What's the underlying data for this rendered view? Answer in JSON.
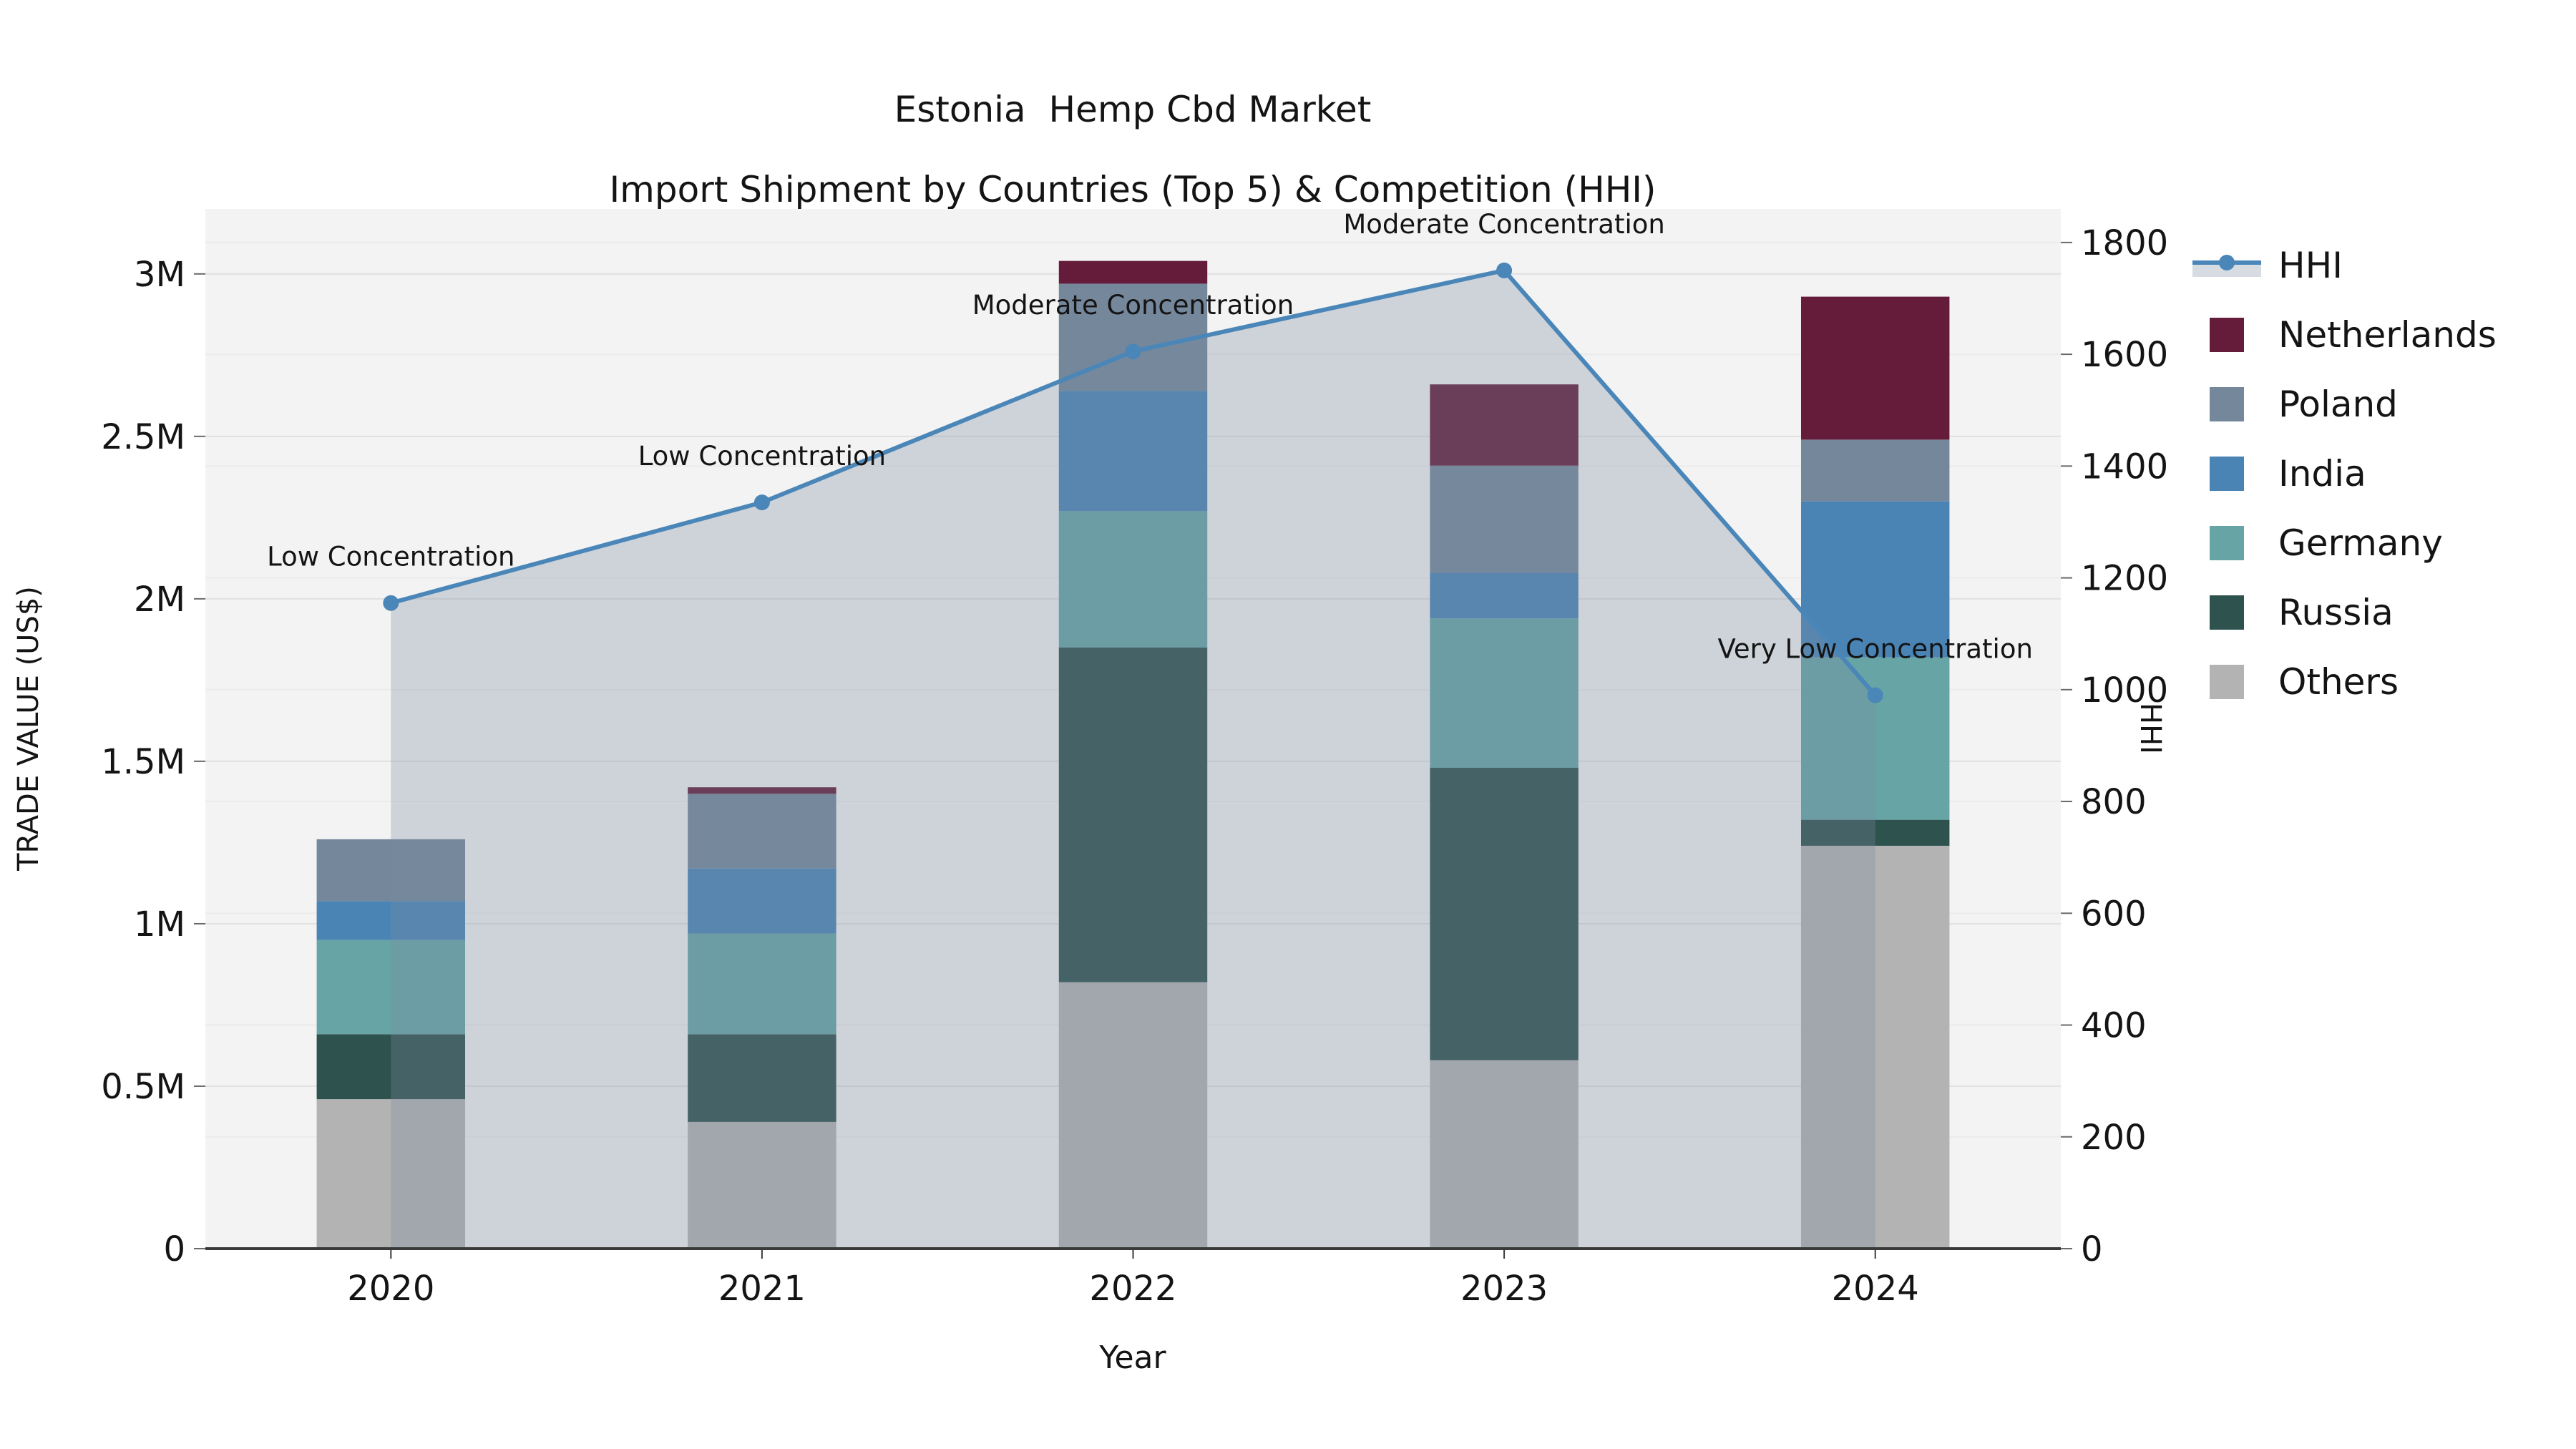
{
  "title": {
    "line1": "Estonia  Hemp Cbd Market",
    "line2": "Import Shipment by Countries (Top 5) & Competition (HHI)"
  },
  "axes": {
    "x_label": "Year",
    "y_left_label": "TRADE VALUE (US$)",
    "y_right_label": "HHI"
  },
  "colors": {
    "background": "#ffffff",
    "plot_background": "#f3f3f3",
    "grid_major": "#e1e1e1",
    "grid_minor": "#ebebeb",
    "axis_spine": "#3a3a3a",
    "hhi_line": "#4a86b8",
    "hhi_area": "rgba(122,139,158,0.30)",
    "netherlands": "#641c3a",
    "poland": "#75879b",
    "india": "#4a84b5",
    "germany": "#66a4a6",
    "russia": "#2e524e",
    "others": "#b3b3b3",
    "text": "#141414"
  },
  "legend": [
    {
      "label": "HHI",
      "type": "line-area",
      "color": "#4a86b8"
    },
    {
      "label": "Netherlands",
      "type": "swatch",
      "color": "#641c3a"
    },
    {
      "label": "Poland",
      "type": "swatch",
      "color": "#75879b"
    },
    {
      "label": "India",
      "type": "swatch",
      "color": "#4a84b5"
    },
    {
      "label": "Germany",
      "type": "swatch",
      "color": "#66a4a6"
    },
    {
      "label": "Russia",
      "type": "swatch",
      "color": "#2e524e"
    },
    {
      "label": "Others",
      "type": "swatch",
      "color": "#b3b3b3"
    }
  ],
  "chart_data": {
    "type": "combo-stacked-bar-and-line-area",
    "title": "Estonia  Hemp Cbd Market — Import Shipment by Countries (Top 5) & Competition (HHI)",
    "categories": [
      "2020",
      "2021",
      "2022",
      "2023",
      "2024"
    ],
    "xlabel": "Year",
    "bar_series_bottom_to_top": [
      {
        "name": "Others",
        "color_key": "others",
        "values": [
          460000,
          390000,
          820000,
          580000,
          1240000
        ]
      },
      {
        "name": "Russia",
        "color_key": "russia",
        "values": [
          200000,
          270000,
          1030000,
          900000,
          80000
        ]
      },
      {
        "name": "Germany",
        "color_key": "germany",
        "values": [
          290000,
          310000,
          420000,
          460000,
          500000
        ]
      },
      {
        "name": "India",
        "color_key": "india",
        "values": [
          120000,
          200000,
          370000,
          140000,
          480000
        ]
      },
      {
        "name": "Poland",
        "color_key": "poland",
        "values": [
          190000,
          230000,
          330000,
          330000,
          190000
        ]
      },
      {
        "name": "Netherlands",
        "color_key": "netherlands",
        "values": [
          0,
          20000,
          70000,
          250000,
          440000
        ]
      }
    ],
    "bar_totals": [
      1260000,
      1420000,
      3040000,
      2660000,
      2930000
    ],
    "line_series": {
      "name": "HHI",
      "axis": "right",
      "values": [
        1155,
        1335,
        1605,
        1750,
        990
      ],
      "area_fill": true
    },
    "annotations": [
      {
        "category": "2020",
        "text": "Low Concentration"
      },
      {
        "category": "2021",
        "text": "Low Concentration"
      },
      {
        "category": "2022",
        "text": "Moderate Concentration"
      },
      {
        "category": "2023",
        "text": "Moderate Concentration"
      },
      {
        "category": "2024",
        "text": "Very Low Concentration"
      }
    ],
    "y_left": {
      "label": "TRADE VALUE (US$)",
      "min": 0,
      "max": 3200000,
      "ticks": [
        {
          "value": 0,
          "label": "0"
        },
        {
          "value": 500000,
          "label": "0.5M"
        },
        {
          "value": 1000000,
          "label": "1M"
        },
        {
          "value": 1500000,
          "label": "1.5M"
        },
        {
          "value": 2000000,
          "label": "2M"
        },
        {
          "value": 2500000,
          "label": "2.5M"
        },
        {
          "value": 3000000,
          "label": "3M"
        }
      ]
    },
    "y_right": {
      "label": "HHI",
      "min": 0,
      "max": 1860,
      "ticks": [
        {
          "value": 0,
          "label": "0"
        },
        {
          "value": 200,
          "label": "200"
        },
        {
          "value": 400,
          "label": "400"
        },
        {
          "value": 600,
          "label": "600"
        },
        {
          "value": 800,
          "label": "800"
        },
        {
          "value": 1000,
          "label": "1000"
        },
        {
          "value": 1200,
          "label": "1200"
        },
        {
          "value": 1400,
          "label": "1400"
        },
        {
          "value": 1600,
          "label": "1600"
        },
        {
          "value": 1800,
          "label": "1800"
        }
      ]
    },
    "grid": true,
    "legend_position": "right"
  }
}
